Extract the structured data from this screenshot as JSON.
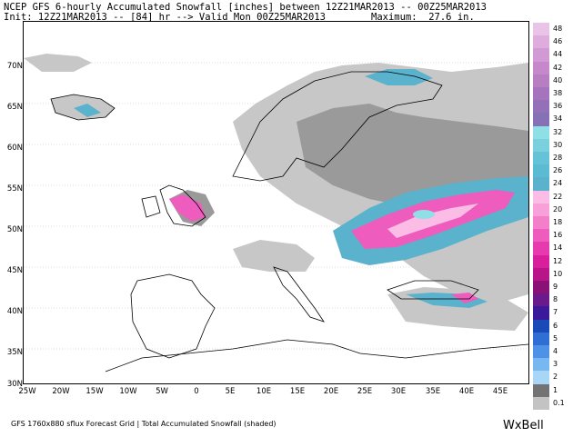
{
  "header": {
    "line1": "NCEP GFS 6-hourly Accumulated Snowfall [inches] between 12Z21MAR2013 -- 00Z25MAR2013",
    "line2": "Init: 12Z21MAR2013 -- [84] hr --> Valid Mon 00Z25MAR2013",
    "maximum": "Maximum:  27.6 in."
  },
  "map": {
    "lat_labels": [
      "70N",
      "65N",
      "60N",
      "55N",
      "50N",
      "45N",
      "40N",
      "35N",
      "30N"
    ],
    "lon_labels": [
      "25W",
      "20W",
      "15W",
      "10W",
      "5W",
      "0",
      "5E",
      "10E",
      "15E",
      "20E",
      "25E",
      "30E",
      "35E",
      "40E",
      "45E"
    ]
  },
  "colorbar": {
    "levels": [
      "48",
      "46",
      "44",
      "42",
      "40",
      "38",
      "36",
      "34",
      "32",
      "30",
      "28",
      "26",
      "24",
      "22",
      "20",
      "18",
      "16",
      "14",
      "12",
      "10",
      "9",
      "8",
      "7",
      "6",
      "5",
      "4",
      "3",
      "2",
      "1",
      "0.1"
    ],
    "colors": [
      "#e9c3e8",
      "#deadde",
      "#d29ad4",
      "#c688ca",
      "#b87ec2",
      "#a674bc",
      "#9470b8",
      "#8670b6",
      "#8fe0e6",
      "#7ad0dc",
      "#66c2d6",
      "#5bbbd2",
      "#5ab2cc",
      "#fbbce6",
      "#f7a0da",
      "#f37fcb",
      "#ee5cbd",
      "#e63aae",
      "#d81e9d",
      "#b81688",
      "#8a1276",
      "#6a1a8a",
      "#3a1a9a",
      "#1a4ab8",
      "#2f6fd4",
      "#4d92e6",
      "#78b8f0",
      "#a7d6f7",
      "#737373",
      "#c3c3c3"
    ]
  },
  "footer": "GFS 1760x880 sflux Forecast Grid | Total Accumulated Snowfall (shaded)",
  "brand": "WxBell"
}
